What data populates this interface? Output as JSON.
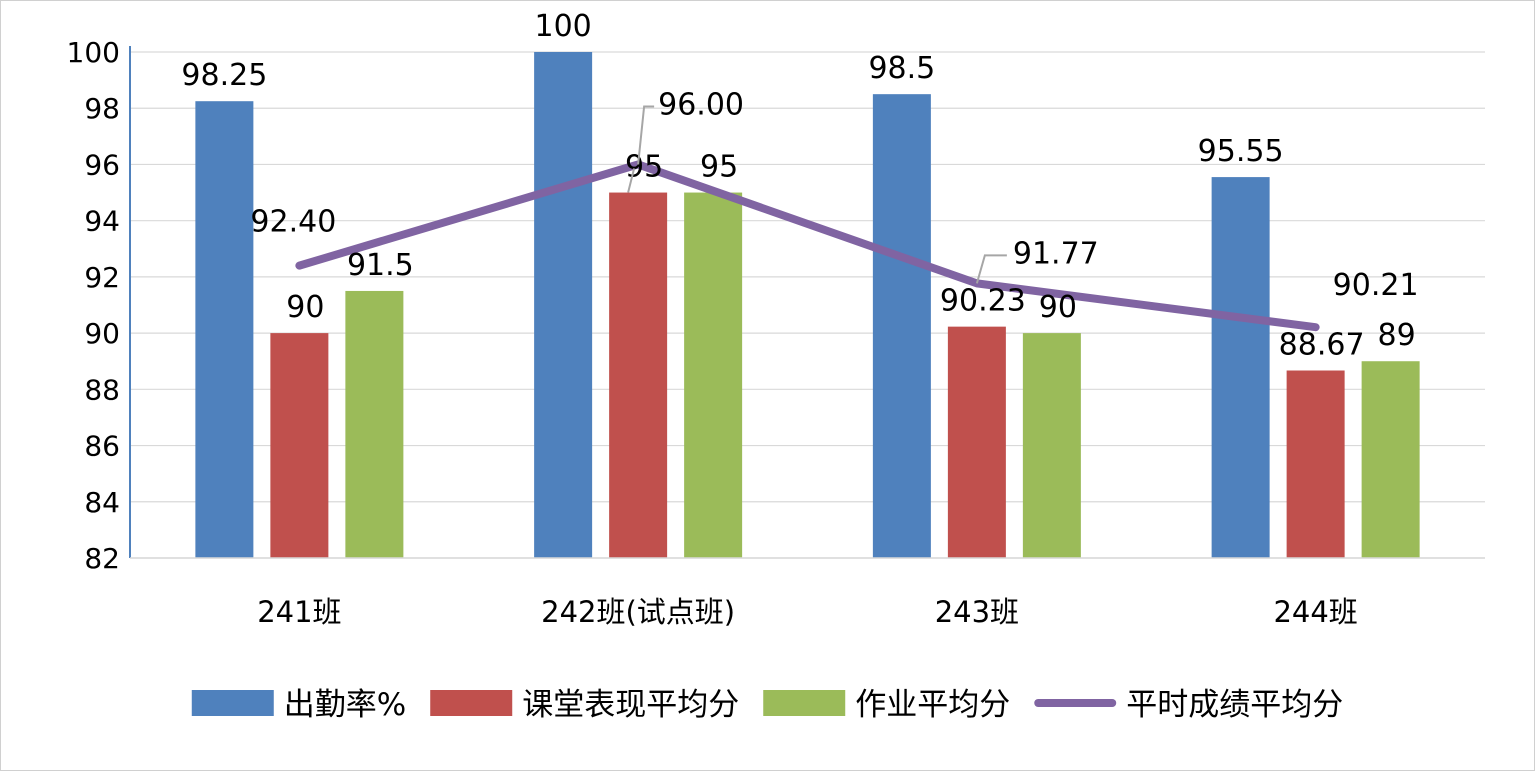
{
  "chart_data": {
    "type": "bar",
    "categories": [
      "241班",
      "242班(试点班)",
      "243班",
      "244班"
    ],
    "series": [
      {
        "name": "出勤率%",
        "type": "bar",
        "color": "#4F81BD",
        "values": [
          98.25,
          100,
          98.5,
          95.55
        ],
        "labels": [
          "98.25",
          "100",
          "98.5",
          "95.55"
        ]
      },
      {
        "name": "课堂表现平均分",
        "type": "bar",
        "color": "#C0504D",
        "values": [
          90,
          95,
          90.23,
          88.67
        ],
        "labels": [
          "90",
          "95",
          "90.23",
          "88.67"
        ]
      },
      {
        "name": "作业平均分",
        "type": "bar",
        "color": "#9BBB59",
        "values": [
          91.5,
          95,
          90,
          89
        ],
        "labels": [
          "91.5",
          "95",
          "90",
          "89"
        ]
      },
      {
        "name": "平时成绩平均分",
        "type": "line",
        "color": "#8064A2",
        "values": [
          92.4,
          96.0,
          91.77,
          90.21
        ],
        "labels": [
          "92.40",
          "96.00",
          "91.77",
          "90.21"
        ]
      }
    ],
    "ylim": [
      82,
      100
    ],
    "yticks": [
      "82",
      "84",
      "86",
      "88",
      "90",
      "92",
      "94",
      "96",
      "98",
      "100"
    ],
    "grid": true,
    "legend": "bottom"
  }
}
